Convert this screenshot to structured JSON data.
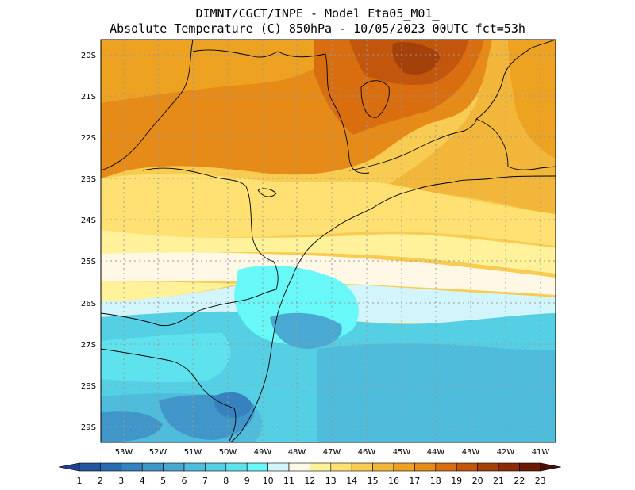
{
  "header": {
    "line1": "DIMNT/CGCT/INPE -  Model Eta05_M01_",
    "line2": "Absolute Temperature (C) 850hPa -  10/05/2023 00UTC fct=53h"
  },
  "map": {
    "lat_labels": [
      "20S",
      "21S",
      "22S",
      "23S",
      "24S",
      "25S",
      "26S",
      "27S",
      "28S",
      "29S"
    ],
    "lon_labels": [
      "53W",
      "52W",
      "51W",
      "50W",
      "49W",
      "48W",
      "47W",
      "46W",
      "45W",
      "44W",
      "43W",
      "42W",
      "41W"
    ]
  },
  "colorbar": {
    "labels": [
      "1",
      "2",
      "3",
      "4",
      "5",
      "6",
      "7",
      "8",
      "9",
      "10",
      "11",
      "12",
      "13",
      "14",
      "15",
      "16",
      "17",
      "18",
      "19",
      "20",
      "21",
      "22",
      "23"
    ],
    "colors": [
      "#1f3f8f",
      "#2456a0",
      "#2a6cb2",
      "#3682be",
      "#4196c9",
      "#4aa9d2",
      "#50bcdc",
      "#55cfe4",
      "#5ee3ee",
      "#67f8f7",
      "#d2f4fb",
      "#fff8e6",
      "#fff29a",
      "#ffe072",
      "#f8cc52",
      "#f2b63a",
      "#eea222",
      "#e68a18",
      "#d86e10",
      "#c2560c",
      "#a4400a",
      "#8a2a08",
      "#6c1a06",
      "#4e0c04"
    ]
  }
}
